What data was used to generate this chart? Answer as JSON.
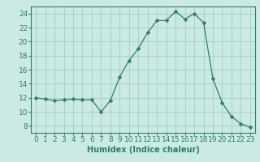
{
  "x": [
    0,
    1,
    2,
    3,
    4,
    5,
    6,
    7,
    8,
    9,
    10,
    11,
    12,
    13,
    14,
    15,
    16,
    17,
    18,
    19,
    20,
    21,
    22,
    23
  ],
  "y": [
    12,
    11.8,
    11.6,
    11.7,
    11.8,
    11.7,
    11.7,
    10.0,
    11.6,
    15.0,
    17.3,
    19.0,
    21.3,
    23.0,
    23.0,
    24.3,
    23.2,
    24.0,
    22.7,
    14.7,
    11.3,
    9.3,
    8.3,
    7.8
  ],
  "line_color": "#2e7d6e",
  "marker": "D",
  "marker_size": 2.5,
  "bg_color": "#cceae4",
  "grid_color": "#aad4cc",
  "xlabel": "Humidex (Indice chaleur)",
  "xlim": [
    -0.5,
    23.5
  ],
  "ylim": [
    7,
    25
  ],
  "yticks": [
    8,
    10,
    12,
    14,
    16,
    18,
    20,
    22,
    24
  ],
  "xticks": [
    0,
    1,
    2,
    3,
    4,
    5,
    6,
    7,
    8,
    9,
    10,
    11,
    12,
    13,
    14,
    15,
    16,
    17,
    18,
    19,
    20,
    21,
    22,
    23
  ],
  "tick_color": "#2e7d6e",
  "label_fontsize": 7,
  "tick_fontsize": 6.5
}
